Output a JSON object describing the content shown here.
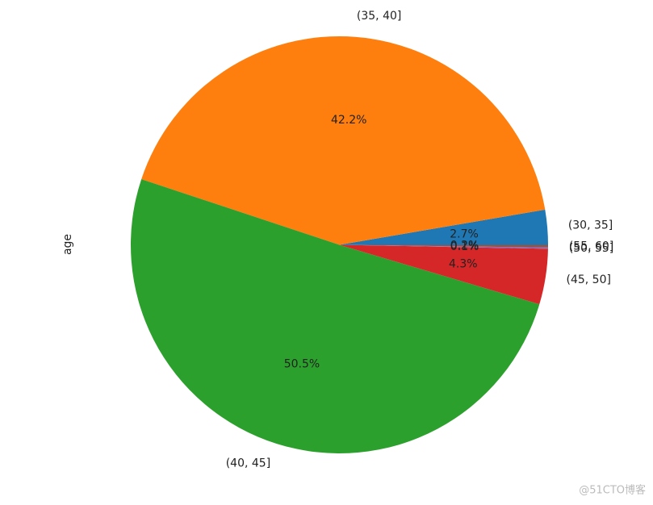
{
  "chart_data": {
    "type": "pie",
    "ylabel": "age",
    "categories": [
      "(30, 35]",
      "(35, 40]",
      "(40, 45]",
      "(45, 50]",
      "(50, 55]",
      "(55, 60]"
    ],
    "values": [
      2.7,
      42.2,
      50.5,
      4.3,
      0.1,
      0.2
    ],
    "value_labels": [
      "2.7%",
      "42.2%",
      "50.5%",
      "4.3%",
      "0.1%",
      "0.2%"
    ],
    "colors": [
      "#1f77b4",
      "#ff7f0e",
      "#2ca02c",
      "#d62728",
      "#9467bd",
      "#8c564b"
    ]
  },
  "watermark": "@51CTO博客"
}
